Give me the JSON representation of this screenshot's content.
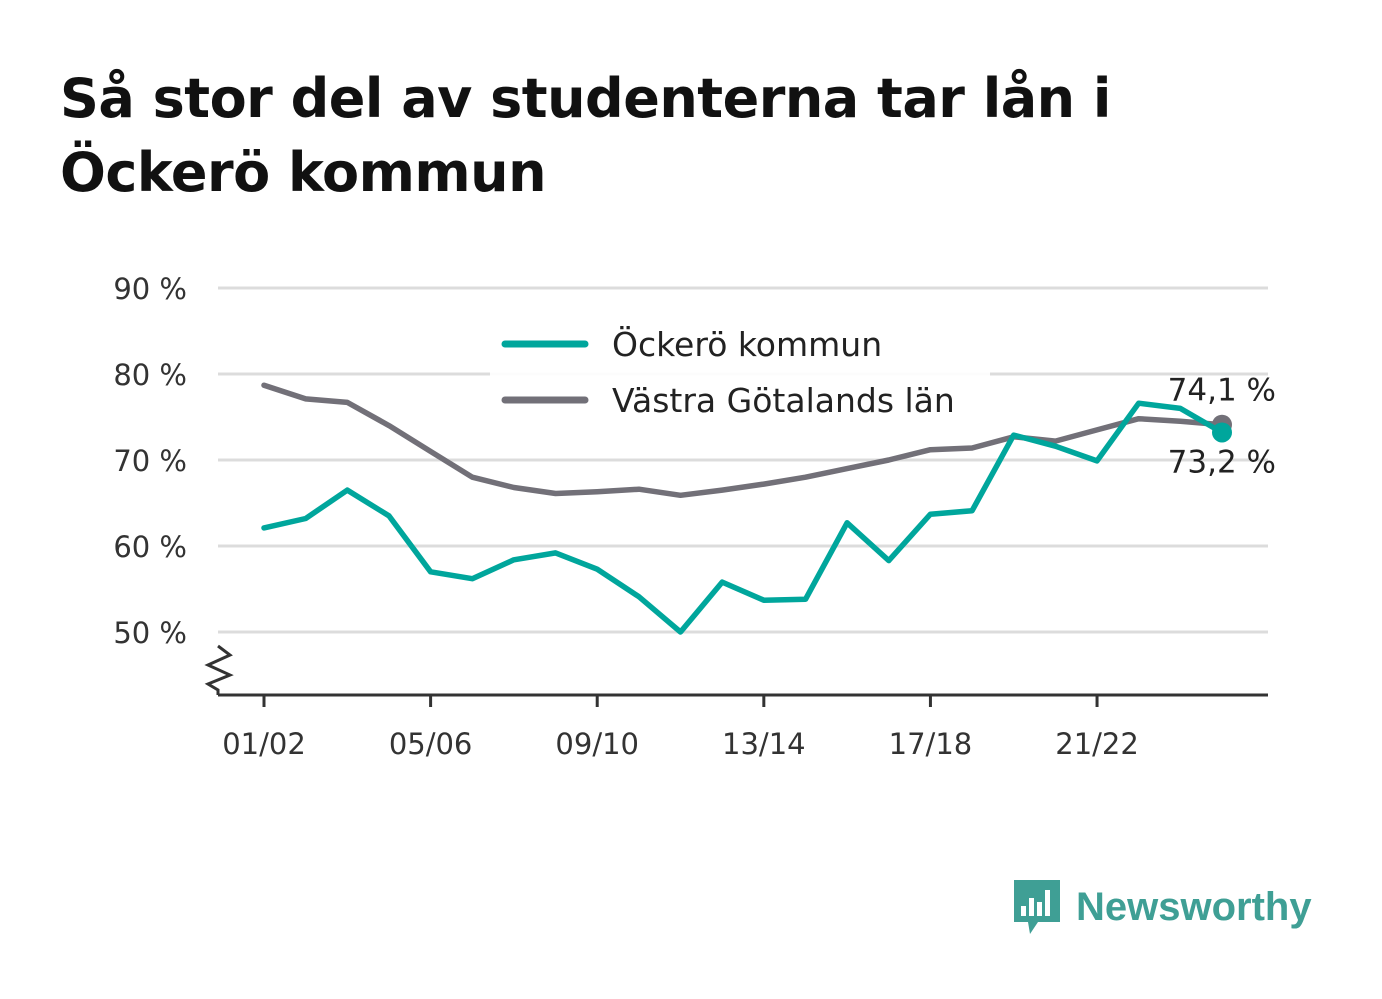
{
  "title_line1": "Så stor del av studenterna tar lån i",
  "title_line2": "Öckerö kommun",
  "brand": {
    "name": "Newsworthy",
    "icon": "bar-chart-icon",
    "color": "#3f9f95"
  },
  "chart_data": {
    "type": "line",
    "y_axis": {
      "min": 50,
      "max": 90,
      "ticks": [
        50,
        60,
        70,
        80,
        90
      ],
      "format": "{v} %",
      "broken_axis": true
    },
    "x_tick_labels": [
      "01/02",
      "05/06",
      "09/10",
      "13/14",
      "17/18",
      "21/22"
    ],
    "x": [
      "01/02",
      "02/03",
      "03/04",
      "04/05",
      "05/06",
      "06/07",
      "07/08",
      "08/09",
      "09/10",
      "10/11",
      "11/12",
      "12/13",
      "13/14",
      "14/15",
      "15/16",
      "16/17",
      "17/18",
      "18/19",
      "19/20",
      "20/21",
      "21/22",
      "22/23",
      "23/24",
      "24/25"
    ],
    "series": [
      {
        "name": "Öckerö kommun",
        "color": "#00a69c",
        "values": [
          62.1,
          63.2,
          66.5,
          63.5,
          57.0,
          56.2,
          58.4,
          59.2,
          57.3,
          54.1,
          50.0,
          55.8,
          53.7,
          53.8,
          62.7,
          58.3,
          63.7,
          64.1,
          72.9,
          71.6,
          69.9,
          76.6,
          76.0,
          73.2
        ]
      },
      {
        "name": "Västra Götalands län",
        "color": "#727078",
        "values": [
          78.7,
          77.1,
          76.7,
          74.0,
          71.0,
          68.0,
          66.8,
          66.1,
          66.3,
          66.6,
          65.9,
          66.5,
          67.2,
          68.0,
          69.0,
          70.0,
          71.2,
          71.4,
          72.7,
          72.2,
          73.5,
          74.8,
          74.5,
          74.1
        ]
      }
    ],
    "end_labels": [
      {
        "series": "Västra Götalands län",
        "text": "74,1 %"
      },
      {
        "series": "Öckerö kommun",
        "text": "73,2 %"
      }
    ],
    "legend": {
      "placement": "top-center",
      "entries": [
        "Öckerö kommun",
        "Västra Götalands län"
      ]
    },
    "grid": true
  }
}
